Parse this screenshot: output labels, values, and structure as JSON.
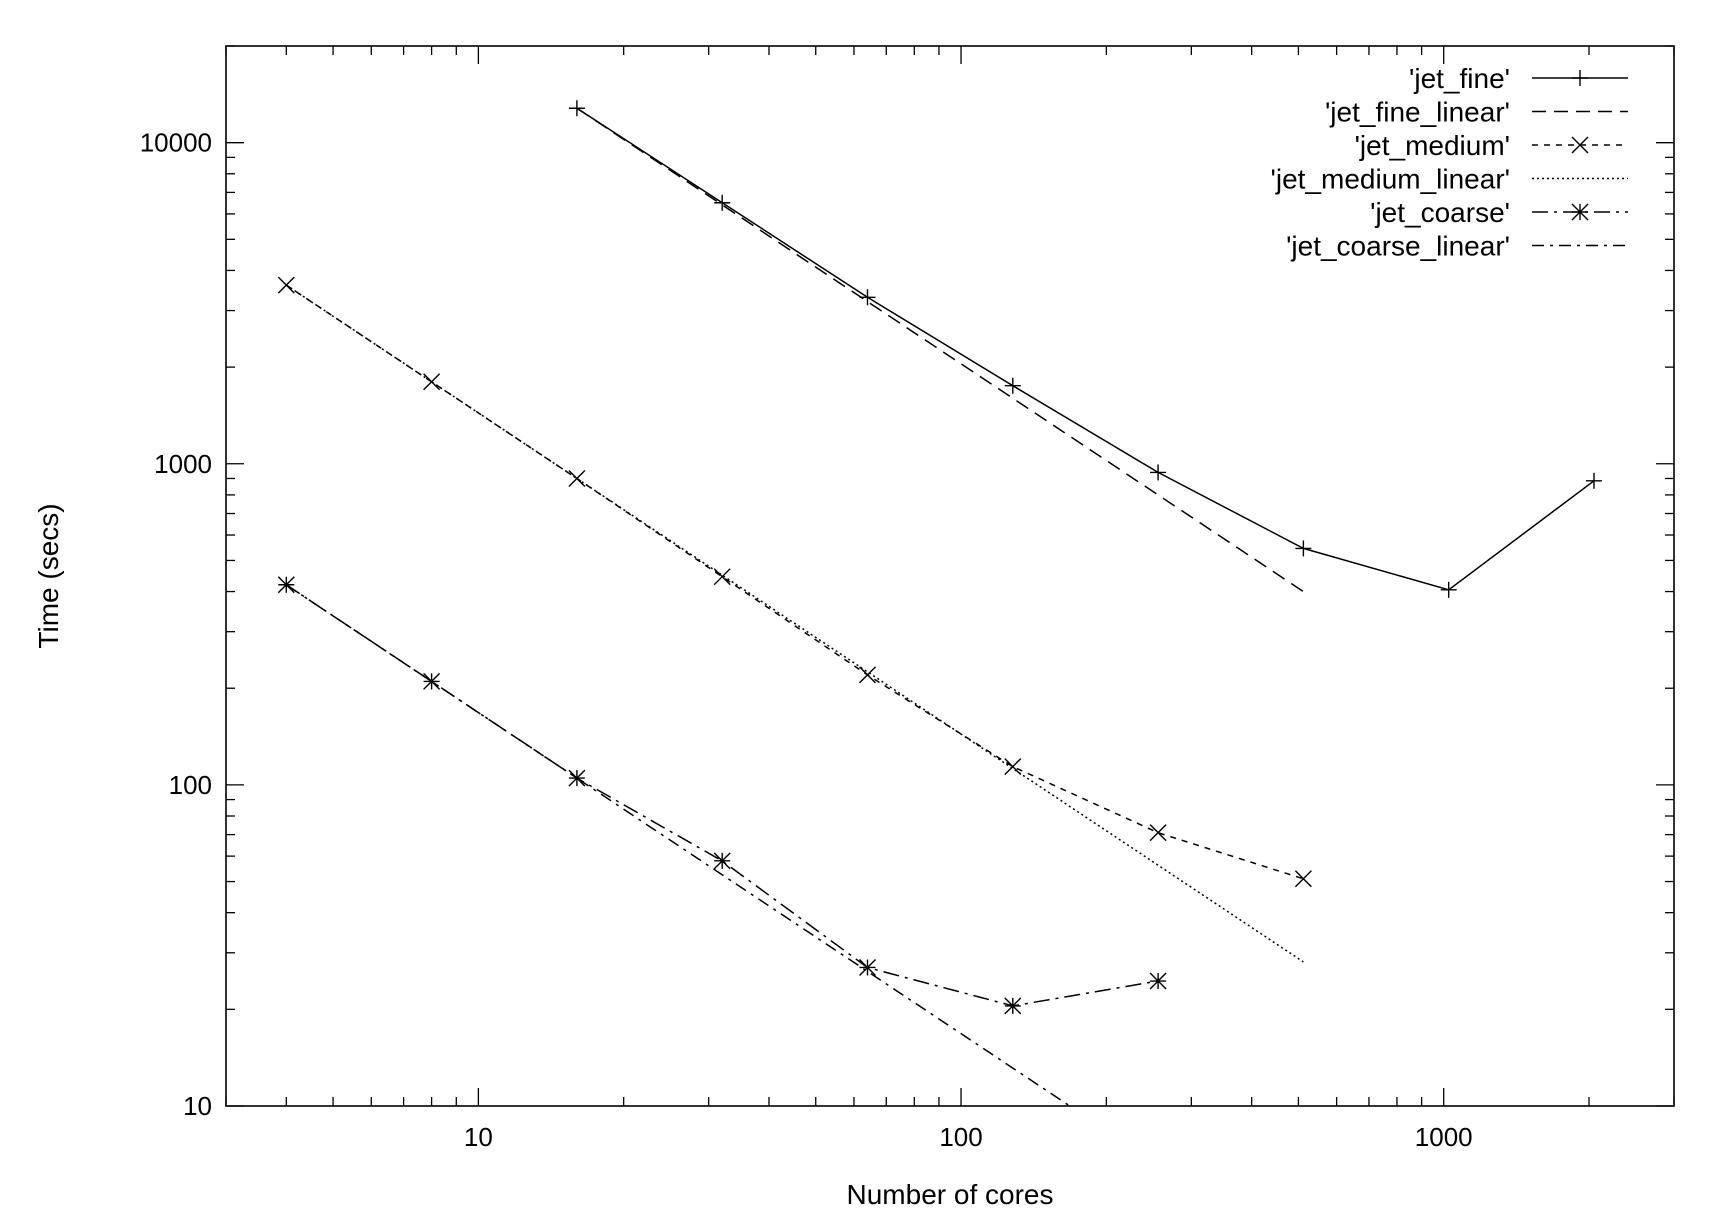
{
  "chart_data": {
    "type": "line",
    "xlabel": "Number of cores",
    "ylabel": "Time (secs)",
    "xscale": "log",
    "yscale": "log",
    "xlim": [
      3,
      3000
    ],
    "ylim": [
      10,
      20000
    ],
    "xticks": [
      10,
      100,
      1000
    ],
    "xtick_labels": [
      "10",
      "100",
      "1000"
    ],
    "yticks": [
      10,
      100,
      1000,
      10000
    ],
    "ytick_labels": [
      "10",
      "100",
      "1000",
      "10000"
    ],
    "legend_position": "top-right",
    "grid": false,
    "series": [
      {
        "name": "'jet_fine'",
        "style": "solid",
        "marker": "plus",
        "x": [
          16,
          32,
          64,
          128,
          256,
          512,
          1024,
          2048
        ],
        "y": [
          12800,
          6500,
          3300,
          1750,
          940,
          545,
          405,
          885
        ]
      },
      {
        "name": "'jet_fine_linear'",
        "style": "dashed",
        "marker": "none",
        "x": [
          16,
          512
        ],
        "y": [
          12800,
          400
        ]
      },
      {
        "name": "'jet_medium'",
        "style": "short-dashed",
        "marker": "cross",
        "x": [
          4,
          8,
          16,
          32,
          64,
          128,
          256,
          512
        ],
        "y": [
          3600,
          1800,
          900,
          445,
          220,
          114,
          71,
          51
        ]
      },
      {
        "name": "'jet_medium_linear'",
        "style": "dotted",
        "marker": "none",
        "x": [
          4,
          512
        ],
        "y": [
          3600,
          28.1
        ]
      },
      {
        "name": "'jet_coarse'",
        "style": "dash-dot",
        "marker": "star",
        "x": [
          4,
          8,
          16,
          32,
          64,
          128,
          256
        ],
        "y": [
          420,
          210,
          105,
          58,
          27,
          20.5,
          24.5
        ]
      },
      {
        "name": "'jet_coarse_linear'",
        "style": "dash-dot-long",
        "marker": "none",
        "x": [
          4,
          168
        ],
        "y": [
          420,
          10
        ]
      }
    ]
  }
}
